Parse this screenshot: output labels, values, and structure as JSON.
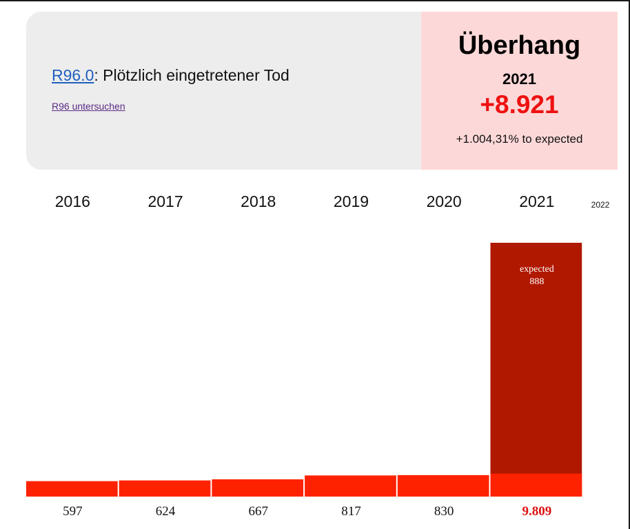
{
  "header": {
    "code_link": "R96.0",
    "code_separator": ":",
    "code_description": "Plötzlich eingetretener Tod",
    "inspect_link": "R96 untersuchen"
  },
  "summary": {
    "title": "Überhang",
    "year": "2021",
    "excess": "+8.921",
    "percent_text": "+1.004,31% to expected"
  },
  "colors": {
    "bar": "#ff2200",
    "expected_bar": "#b01800",
    "highlight_value": "#dd1111"
  },
  "chart_data": {
    "type": "bar",
    "categories": [
      "2016",
      "2017",
      "2018",
      "2019",
      "2020",
      "2021"
    ],
    "values": [
      597,
      624,
      667,
      817,
      830,
      9809
    ],
    "value_labels": [
      "597",
      "624",
      "667",
      "817",
      "830",
      "9.809"
    ],
    "highlight_index": 5,
    "extra_column_label": "2022",
    "expected": {
      "category": "2021",
      "label": "expected",
      "value": 888,
      "value_label": "888"
    },
    "title": "",
    "xlabel": "",
    "ylabel": "",
    "ylim": [
      0,
      9809
    ]
  }
}
